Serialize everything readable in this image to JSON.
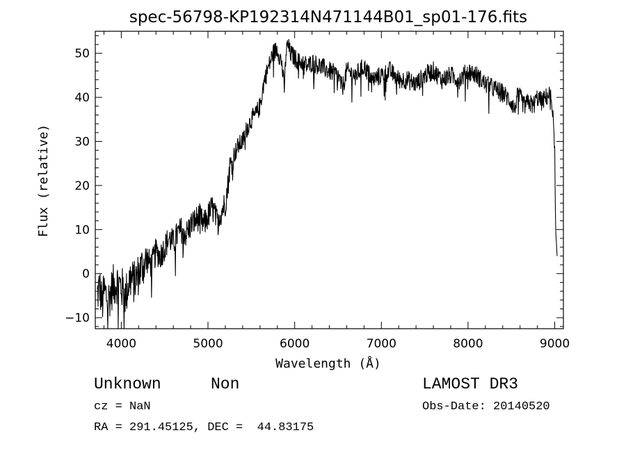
{
  "chart_data": {
    "type": "line",
    "title": "spec-56798-KP192314N471144B01_sp01-176.fits",
    "xlabel": "Wavelength (Å)",
    "ylabel": "Flux (relative)",
    "xlim": [
      3700,
      9100
    ],
    "ylim": [
      -12.5,
      55
    ],
    "xticks": [
      4000,
      5000,
      6000,
      7000,
      8000,
      9000
    ],
    "yticks": [
      -10,
      0,
      10,
      20,
      30,
      40,
      50
    ],
    "xtick_labels": [
      "4000",
      "5000",
      "6000",
      "7000",
      "8000",
      "9000"
    ],
    "ytick_labels": [
      "−10",
      "0",
      "10",
      "20",
      "30",
      "40",
      "50"
    ],
    "grid": false,
    "series": [
      {
        "x": [
          3720,
          3750,
          3780,
          3800,
          3850,
          3900,
          3950,
          4000,
          4050,
          4100,
          4150,
          4200,
          4250,
          4300,
          4350,
          4400,
          4450,
          4500,
          4550,
          4600,
          4650,
          4700,
          4750,
          4800,
          4850,
          4900,
          4950,
          5000,
          5050,
          5100,
          5150,
          5200,
          5230,
          5250,
          5300,
          5350,
          5400,
          5450,
          5500,
          5550,
          5600,
          5650,
          5700,
          5750,
          5800,
          5850,
          5880,
          5900,
          5920,
          5950,
          6000,
          6050,
          6100,
          6150,
          6200,
          6300,
          6400,
          6500,
          6550,
          6600,
          6700,
          6800,
          6900,
          7000,
          7100,
          7200,
          7300,
          7400,
          7500,
          7600,
          7700,
          7800,
          7900,
          8000,
          8100,
          8200,
          8300,
          8400,
          8500,
          8540,
          8560,
          8600,
          8650,
          8700,
          8750,
          8800,
          8850,
          8900,
          8950,
          8980,
          9000,
          9010,
          9030
        ],
        "y": [
          -5,
          -3,
          -7,
          -4,
          -6,
          -3,
          -2,
          -3,
          -5,
          -1,
          -2,
          0,
          2,
          3,
          2,
          5,
          4,
          6,
          8,
          7,
          9,
          10,
          9,
          11,
          12,
          13,
          11,
          13,
          15,
          12,
          14,
          16,
          20,
          24,
          27,
          29,
          30,
          33,
          35,
          36,
          38,
          44,
          47,
          50,
          51,
          48,
          42,
          50,
          52,
          50,
          49,
          48,
          48,
          47,
          48,
          47,
          46,
          45,
          42,
          46,
          45,
          47,
          44,
          45,
          46,
          44,
          44,
          43,
          45,
          46,
          44,
          45,
          44,
          46,
          45,
          43,
          42,
          41,
          39,
          37,
          40,
          40,
          38,
          39,
          38,
          40,
          39,
          40,
          41,
          36,
          28,
          10,
          2
        ]
      }
    ]
  },
  "labels": {
    "object_class": "Unknown",
    "object_subclass": "Non",
    "survey": "LAMOST DR3",
    "cz": "cz = NaN",
    "obs_date": "Obs-Date: 20140520",
    "coords": "RA = 291.45125, DEC =  44.83175"
  }
}
